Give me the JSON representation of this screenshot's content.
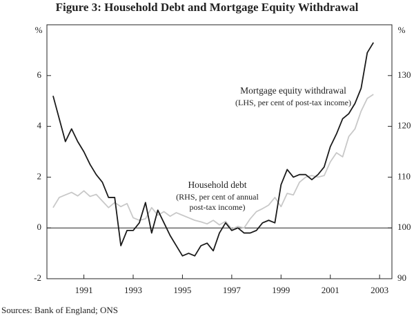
{
  "chart_data": {
    "type": "line",
    "title": "Figure 3: Household Debt and Mortgage Equity Withdrawal",
    "y_unit": "%",
    "y2_unit": "%",
    "source": "Sources: Bank of England; ONS",
    "x": [
      1989.75,
      1990,
      1990.25,
      1990.5,
      1990.75,
      1991,
      1991.25,
      1991.5,
      1991.75,
      1992,
      1992.25,
      1992.5,
      1992.75,
      1993,
      1993.25,
      1993.5,
      1993.75,
      1994,
      1994.25,
      1994.5,
      1994.75,
      1995,
      1995.25,
      1995.5,
      1995.75,
      1996,
      1996.25,
      1996.5,
      1996.75,
      1997,
      1997.25,
      1997.5,
      1997.75,
      1998,
      1998.25,
      1998.5,
      1998.75,
      1999,
      1999.25,
      1999.5,
      1999.75,
      2000,
      2000.25,
      2000.5,
      2000.75,
      2001,
      2001.25,
      2001.5,
      2001.75,
      2002,
      2002.25,
      2002.5,
      2002.75
    ],
    "series": [
      {
        "name": "Mortgage equity withdrawal",
        "note": "(LHS, per cent of post-tax income)",
        "color": "#1a1a1a",
        "axis": "y",
        "values": [
          5.2,
          4.3,
          3.4,
          3.9,
          3.4,
          3.0,
          2.5,
          2.1,
          1.8,
          1.2,
          1.2,
          -0.7,
          -0.1,
          -0.1,
          0.2,
          1.0,
          -0.2,
          0.7,
          0.2,
          -0.3,
          -0.7,
          -1.1,
          -1.0,
          -1.1,
          -0.7,
          -0.6,
          -0.9,
          -0.2,
          0.2,
          -0.1,
          0.0,
          -0.2,
          -0.2,
          -0.1,
          0.2,
          0.3,
          0.2,
          1.7,
          2.3,
          2.0,
          2.1,
          2.1,
          1.9,
          2.1,
          2.4,
          3.2,
          3.7,
          4.3,
          4.5,
          4.9,
          5.5,
          6.9,
          7.3
        ]
      },
      {
        "name": "Household debt",
        "note": [
          "(RHS, per cent of annual",
          "post-tax income)"
        ],
        "color": "#c8c8c8",
        "axis": "y2",
        "values": [
          104,
          106,
          106.5,
          107,
          106.3,
          107.3,
          106.2,
          106.6,
          105.3,
          104,
          105,
          104.2,
          104.8,
          102,
          101.5,
          101.8,
          104,
          102.5,
          103.2,
          102.3,
          103,
          102.5,
          102,
          101.5,
          101.2,
          100.8,
          101.5,
          100.6,
          101.3,
          99.8,
          100.3,
          100,
          101.8,
          103.2,
          103.8,
          104.5,
          106,
          104.2,
          106.8,
          106.5,
          109,
          110,
          110.3,
          110,
          110.3,
          113,
          114.8,
          114,
          118,
          119.5,
          123,
          125.5,
          126.3
        ]
      }
    ],
    "xlim": [
      1989.5,
      2003.5
    ],
    "xticks": [
      1991,
      1993,
      1995,
      1997,
      1999,
      2001,
      2003
    ],
    "ylim": [
      -2,
      8
    ],
    "yticks": [
      -2,
      0,
      2,
      4,
      6
    ],
    "y2lim": [
      90,
      140
    ],
    "y2ticks": [
      90,
      100,
      110,
      120,
      130
    ]
  }
}
